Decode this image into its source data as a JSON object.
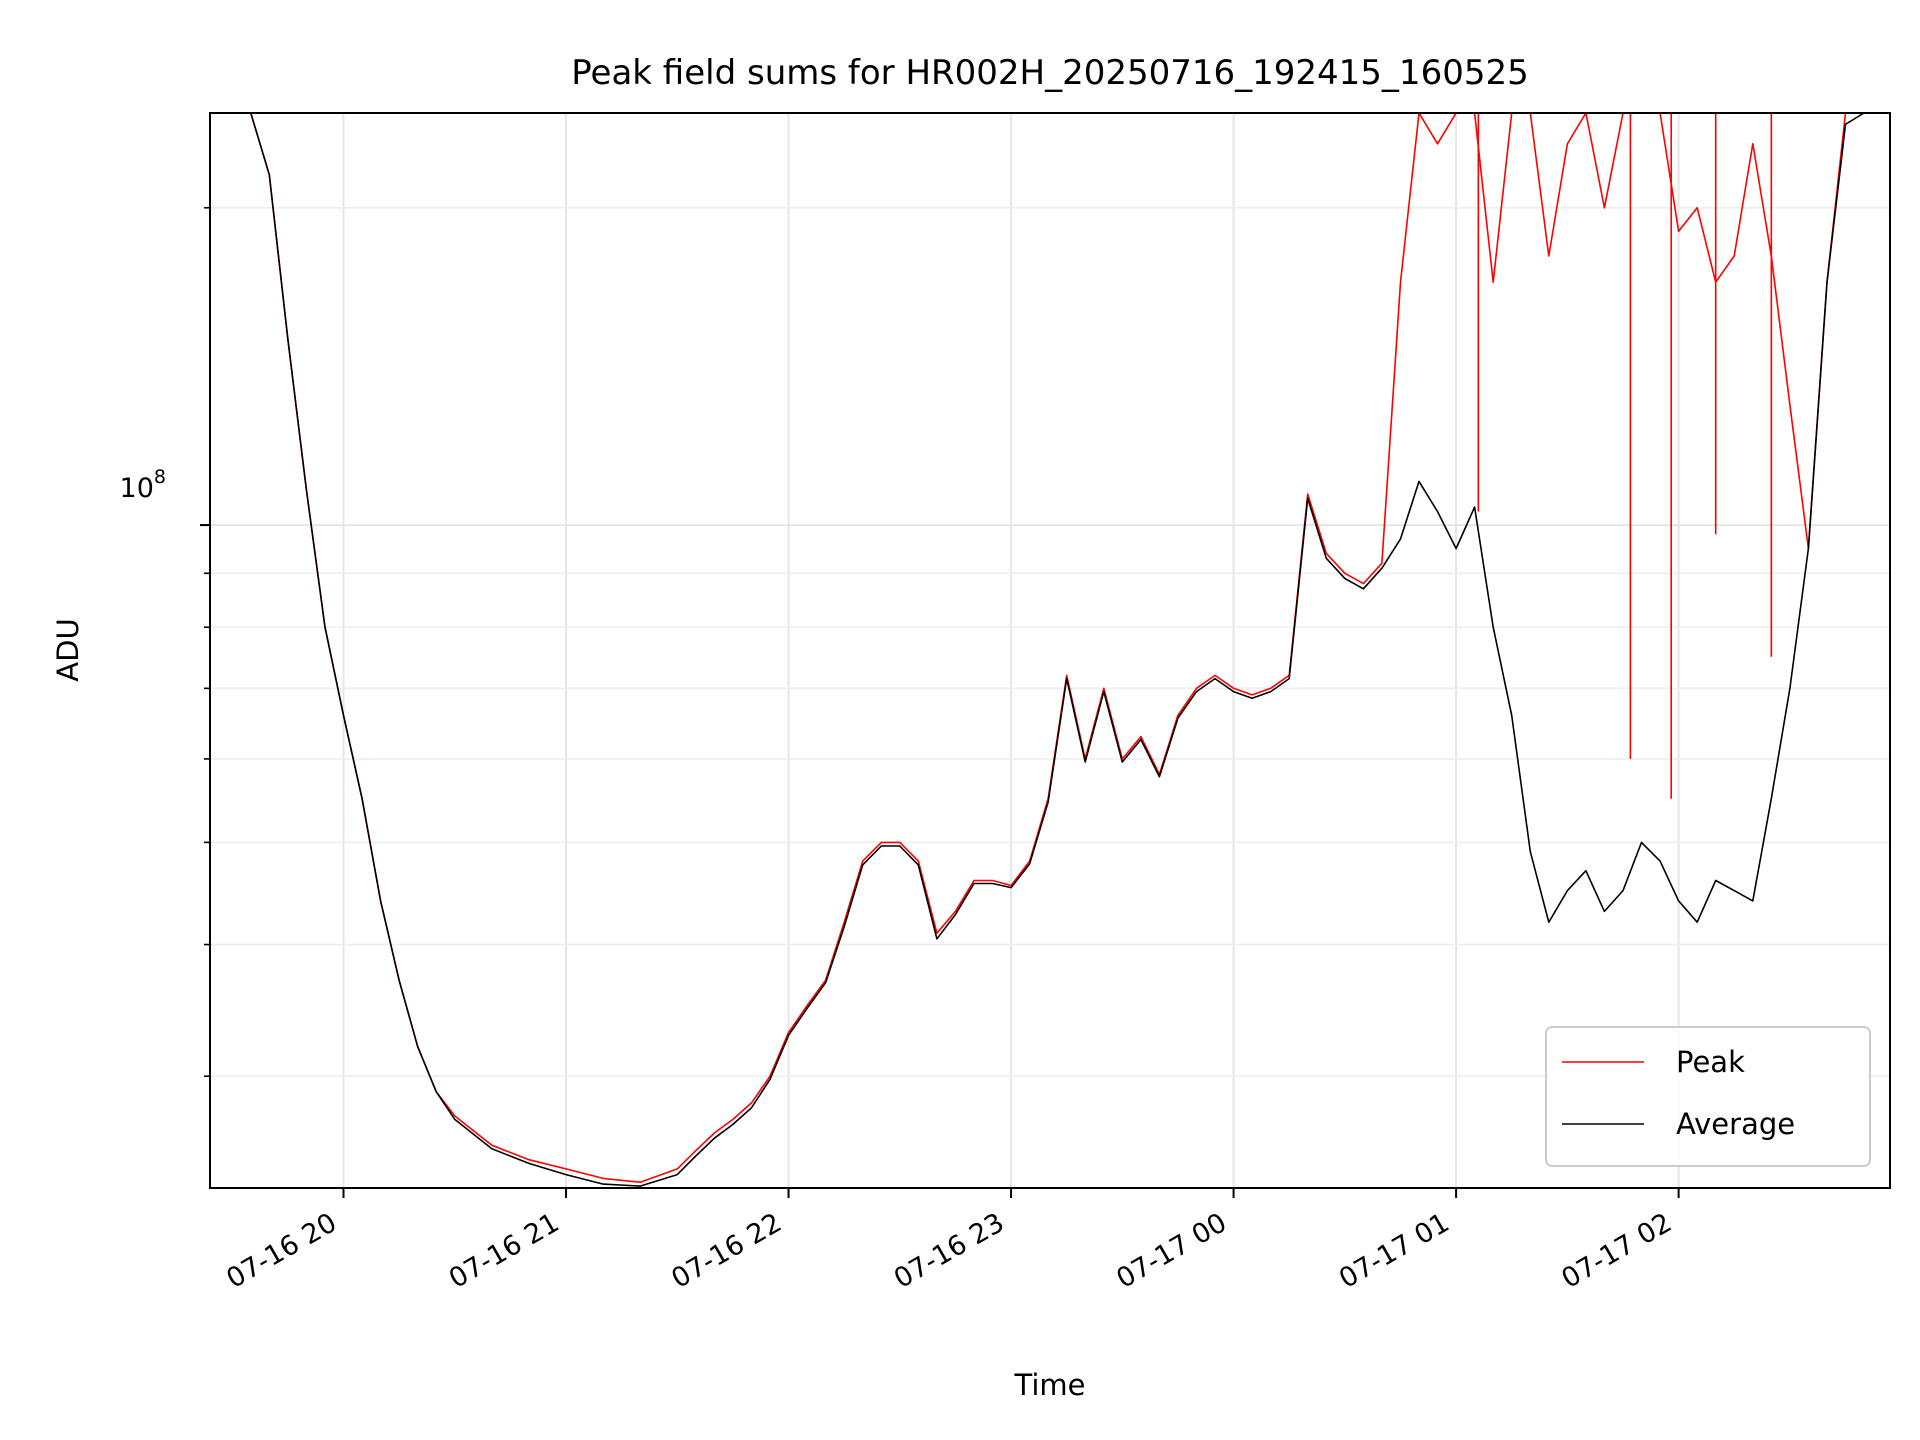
{
  "chart_data": {
    "type": "line",
    "title": "Peak field sums for HR002H_20250716_192415_160525",
    "xlabel": "Time",
    "ylabel": "ADU",
    "yscale": "log",
    "ylim": [
      23500000,
      246000000
    ],
    "xlim": [
      "2025-07-16 19:24",
      "2025-07-17 02:57"
    ],
    "x_tick_labels": [
      "07-16 20",
      "07-16 21",
      "07-16 22",
      "07-16 23",
      "07-17 00",
      "07-17 01",
      "07-17 02"
    ],
    "x_ticks": [
      "2025-07-16 20:00",
      "2025-07-16 21:00",
      "2025-07-16 22:00",
      "2025-07-16 23:00",
      "2025-07-17 00:00",
      "2025-07-17 01:00",
      "2025-07-17 02:00"
    ],
    "y_tick_label_base": "10",
    "y_tick_label_exp": "8",
    "y_major_tick": 100000000,
    "y_minor_ticks": [
      30000000,
      40000000,
      50000000,
      60000000,
      70000000,
      80000000,
      90000000,
      200000000
    ],
    "grid": true,
    "legend_position": "lower-right",
    "x": [
      "2025-07-16 19:24",
      "2025-07-16 19:30",
      "2025-07-16 19:35",
      "2025-07-16 19:40",
      "2025-07-16 19:45",
      "2025-07-16 19:50",
      "2025-07-16 19:55",
      "2025-07-16 20:00",
      "2025-07-16 20:05",
      "2025-07-16 20:10",
      "2025-07-16 20:15",
      "2025-07-16 20:20",
      "2025-07-16 20:25",
      "2025-07-16 20:30",
      "2025-07-16 20:40",
      "2025-07-16 20:50",
      "2025-07-16 21:00",
      "2025-07-16 21:10",
      "2025-07-16 21:20",
      "2025-07-16 21:30",
      "2025-07-16 21:35",
      "2025-07-16 21:40",
      "2025-07-16 21:45",
      "2025-07-16 21:50",
      "2025-07-16 21:55",
      "2025-07-16 22:00",
      "2025-07-16 22:05",
      "2025-07-16 22:10",
      "2025-07-16 22:15",
      "2025-07-16 22:20",
      "2025-07-16 22:25",
      "2025-07-16 22:30",
      "2025-07-16 22:35",
      "2025-07-16 22:40",
      "2025-07-16 22:45",
      "2025-07-16 22:50",
      "2025-07-16 22:55",
      "2025-07-16 23:00",
      "2025-07-16 23:05",
      "2025-07-16 23:10",
      "2025-07-16 23:15",
      "2025-07-16 23:20",
      "2025-07-16 23:25",
      "2025-07-16 23:30",
      "2025-07-16 23:35",
      "2025-07-16 23:40",
      "2025-07-16 23:45",
      "2025-07-16 23:50",
      "2025-07-16 23:55",
      "2025-07-17 00:00",
      "2025-07-17 00:05",
      "2025-07-17 00:10",
      "2025-07-17 00:15",
      "2025-07-17 00:20",
      "2025-07-17 00:25",
      "2025-07-17 00:30",
      "2025-07-17 00:35",
      "2025-07-17 00:40",
      "2025-07-17 00:45",
      "2025-07-17 00:50",
      "2025-07-17 00:55",
      "2025-07-17 01:00",
      "2025-07-17 01:05",
      "2025-07-17 01:10",
      "2025-07-17 01:15",
      "2025-07-17 01:20",
      "2025-07-17 01:25",
      "2025-07-17 01:30",
      "2025-07-17 01:35",
      "2025-07-17 01:40",
      "2025-07-17 01:45",
      "2025-07-17 01:50",
      "2025-07-17 01:55",
      "2025-07-17 02:00",
      "2025-07-17 02:05",
      "2025-07-17 02:10",
      "2025-07-17 02:15",
      "2025-07-17 02:20",
      "2025-07-17 02:25",
      "2025-07-17 02:30",
      "2025-07-17 02:35",
      "2025-07-17 02:40",
      "2025-07-17 02:45",
      "2025-07-17 02:50",
      "2025-07-17 02:57"
    ],
    "series": [
      {
        "name": "Peak",
        "color": "#ff0000",
        "values": [
          246000000,
          246000000,
          246000000,
          215000000,
          150000000,
          108000000,
          80000000,
          66000000,
          55000000,
          44000000,
          37000000,
          32000000,
          29000000,
          27500000,
          25800000,
          25000000,
          24500000,
          24000000,
          23800000,
          24500000,
          25500000,
          26500000,
          27300000,
          28300000,
          30000000,
          33000000,
          35000000,
          37000000,
          42000000,
          48000000,
          50000000,
          50000000,
          48000000,
          41000000,
          43000000,
          46000000,
          46000000,
          45500000,
          48000000,
          55000000,
          72000000,
          60000000,
          70000000,
          60000000,
          63000000,
          58000000,
          66000000,
          70000000,
          72000000,
          70000000,
          69000000,
          70000000,
          72000000,
          107000000,
          94000000,
          90000000,
          88000000,
          92000000,
          170000000,
          246000000,
          230000000,
          246000000,
          246000000,
          170000000,
          246000000,
          246000000,
          180000000,
          230000000,
          246000000,
          200000000,
          246000000,
          246000000,
          246000000,
          190000000,
          200000000,
          170000000,
          180000000,
          230000000,
          180000000,
          130000000,
          95000000,
          170000000,
          246000000,
          246000000,
          246000000
        ],
        "spike_values": [
          [
            "2025-07-17 01:06",
            103000000
          ],
          [
            "2025-07-17 01:47",
            60000000
          ],
          [
            "2025-07-17 01:58",
            55000000
          ],
          [
            "2025-07-17 02:10",
            98000000
          ],
          [
            "2025-07-17 02:25",
            75000000
          ]
        ]
      },
      {
        "name": "Average",
        "color": "#000000",
        "values": [
          246000000,
          246000000,
          246000000,
          215000000,
          150000000,
          108000000,
          80000000,
          66000000,
          55000000,
          44000000,
          37000000,
          32000000,
          29000000,
          27300000,
          25600000,
          24800000,
          24200000,
          23700000,
          23600000,
          24200000,
          25200000,
          26200000,
          27000000,
          28000000,
          29800000,
          32800000,
          34800000,
          36800000,
          41600000,
          47600000,
          49600000,
          49600000,
          47600000,
          40500000,
          42700000,
          45700000,
          45700000,
          45300000,
          47700000,
          54600000,
          71500000,
          59600000,
          69500000,
          59600000,
          62600000,
          57700000,
          65600000,
          69500000,
          71500000,
          69500000,
          68500000,
          69500000,
          71500000,
          106000000,
          93000000,
          89000000,
          87000000,
          91000000,
          97000000,
          110000000,
          103000000,
          95000000,
          104000000,
          80000000,
          66000000,
          49000000,
          42000000,
          45000000,
          47000000,
          43000000,
          45000000,
          50000000,
          48000000,
          44000000,
          42000000,
          46000000,
          45000000,
          44000000,
          55000000,
          70000000,
          95000000,
          170000000,
          240000000,
          246000000,
          246000000
        ]
      }
    ],
    "legend": [
      "Peak",
      "Average"
    ]
  }
}
